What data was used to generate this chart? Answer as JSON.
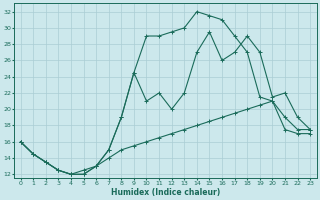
{
  "xlabel": "Humidex (Indice chaleur)",
  "bg_color": "#cce8ec",
  "line_color": "#1a6b5a",
  "grid_color": "#aacdd4",
  "xlim": [
    -0.5,
    23.5
  ],
  "ylim": [
    11.5,
    33
  ],
  "yticks": [
    12,
    14,
    16,
    18,
    20,
    22,
    24,
    26,
    28,
    30,
    32
  ],
  "xticks": [
    0,
    1,
    2,
    3,
    4,
    5,
    6,
    7,
    8,
    9,
    10,
    11,
    12,
    13,
    14,
    15,
    16,
    17,
    18,
    19,
    20,
    21,
    22,
    23
  ],
  "line1_x": [
    0,
    1,
    2,
    3,
    4,
    5,
    6,
    7,
    8,
    9,
    10,
    11,
    12,
    13,
    14,
    15,
    16,
    17,
    18,
    19,
    20,
    21,
    22,
    23
  ],
  "line1_y": [
    16,
    14.5,
    13.5,
    12.5,
    12,
    12,
    13,
    15,
    19,
    24.5,
    29,
    29,
    29.5,
    30,
    32,
    31.5,
    31,
    29,
    27,
    21.5,
    21,
    19,
    17.5,
    17.5
  ],
  "line2_x": [
    0,
    1,
    2,
    3,
    4,
    5,
    6,
    7,
    8,
    9,
    10,
    11,
    12,
    13,
    14,
    15,
    16,
    17,
    18,
    19,
    20,
    21,
    22,
    23
  ],
  "line2_y": [
    16,
    14.5,
    13.5,
    12.5,
    12,
    12,
    13,
    15,
    19,
    24.5,
    21,
    22,
    20,
    22,
    27,
    29.5,
    26,
    27,
    29,
    27,
    21.5,
    22,
    19,
    17.5
  ],
  "line3_x": [
    0,
    1,
    2,
    3,
    4,
    5,
    6,
    7,
    8,
    9,
    10,
    11,
    12,
    13,
    14,
    15,
    16,
    17,
    18,
    19,
    20,
    21,
    22,
    23
  ],
  "line3_y": [
    16,
    14.5,
    13.5,
    12.5,
    12,
    12.5,
    13,
    14,
    15,
    15.5,
    16,
    16.5,
    17,
    17.5,
    18,
    18.5,
    19,
    19.5,
    20,
    20.5,
    21,
    17.5,
    17,
    17
  ]
}
